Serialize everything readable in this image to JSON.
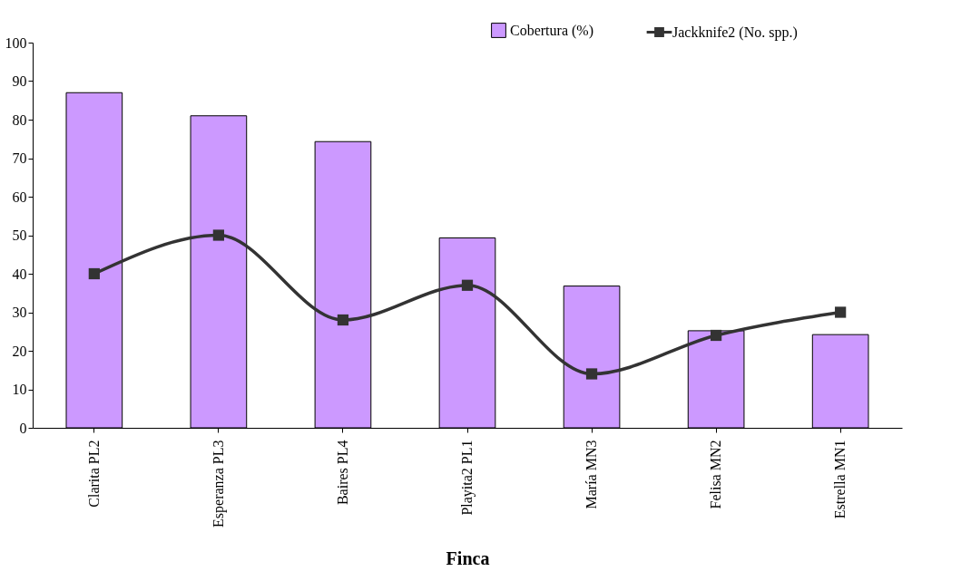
{
  "chart_data": {
    "type": "bar",
    "xlabel": "Finca",
    "categories": [
      "Clarita PL2",
      "Esperanza PL3",
      "Baires PL4",
      "Playita2 PL1",
      "María MN3",
      "Felisa MN2",
      "Estrella MN1"
    ],
    "series": [
      {
        "name": "Cobertura (%)",
        "color": "#cc99ff",
        "values": [
          87,
          81,
          74.3,
          49.3,
          36.8,
          25.2,
          24.2
        ]
      },
      {
        "name": "Jackknife2 (No. spp.)",
        "type": "line",
        "color": "#333333",
        "values": [
          40,
          50,
          28,
          37,
          14,
          24,
          30
        ]
      }
    ],
    "ylim": [
      0,
      100
    ],
    "yticks": [
      0,
      10,
      20,
      30,
      40,
      50,
      60,
      70,
      80,
      90,
      100
    ],
    "grid": false,
    "legend": "top right",
    "marker": "square",
    "line_style": "solid"
  }
}
